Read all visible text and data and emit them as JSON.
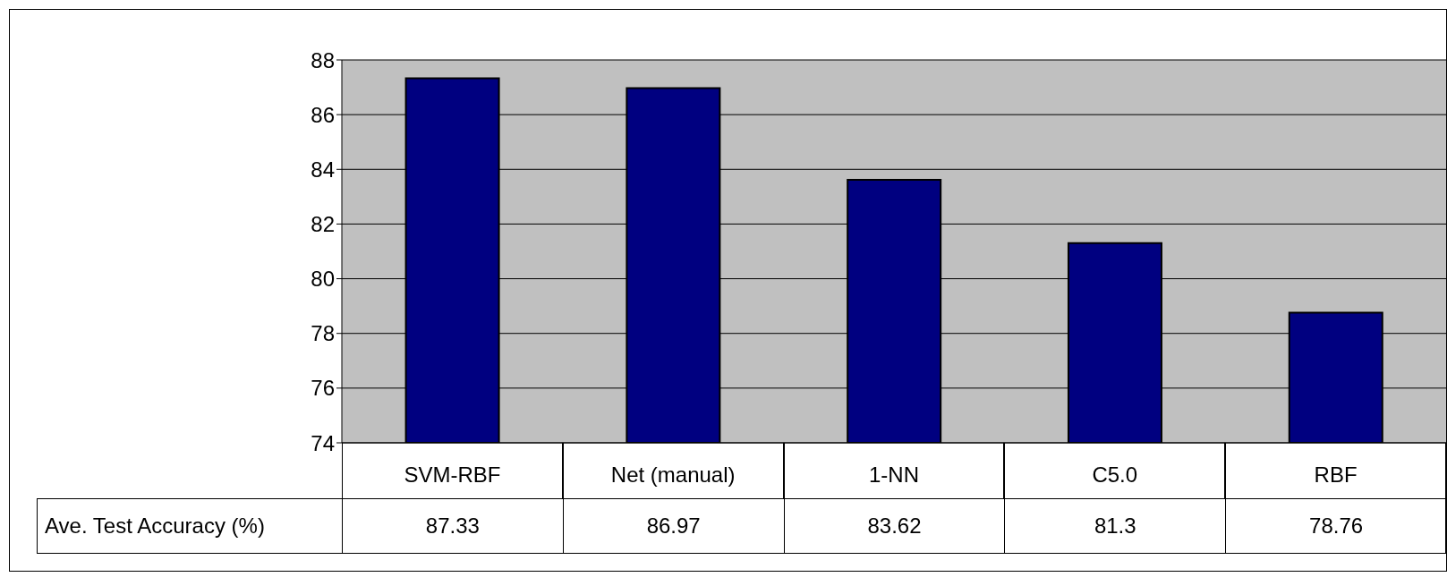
{
  "chart_data": {
    "type": "bar",
    "categories": [
      "SVM-RBF",
      "Net (manual)",
      "1-NN",
      "C5.0",
      "RBF"
    ],
    "series": [
      {
        "name": "Ave. Test Accuracy (%)",
        "color": "#000080",
        "values": [
          87.33,
          86.97,
          83.62,
          81.3,
          78.76
        ]
      }
    ],
    "ylim": [
      74,
      88
    ],
    "yticks": [
      74,
      76,
      78,
      80,
      82,
      84,
      86,
      88
    ],
    "grid": "y",
    "data_labels": true
  }
}
